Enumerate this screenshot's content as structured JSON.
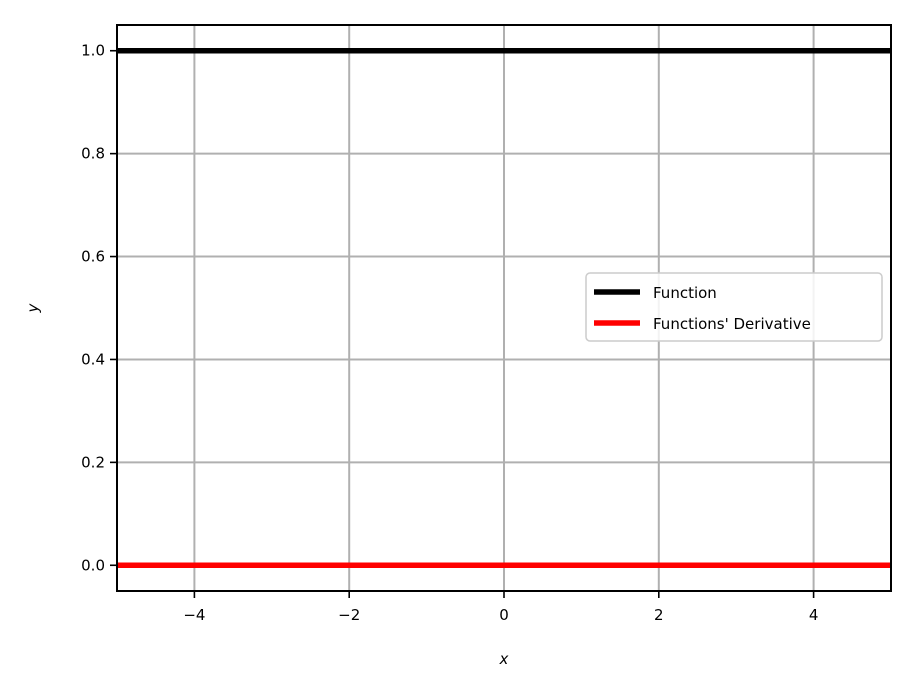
{
  "chart_data": {
    "type": "line",
    "title": "",
    "xlabel": "x",
    "ylabel": "y",
    "xlim": [
      -5,
      5
    ],
    "ylim": [
      -0.05,
      1.05
    ],
    "xticks": [
      -4,
      -2,
      0,
      2,
      4
    ],
    "xtick_labels": [
      "−4",
      "−2",
      "0",
      "2",
      "4"
    ],
    "yticks": [
      0.0,
      0.2,
      0.4,
      0.6,
      0.8,
      1.0
    ],
    "ytick_labels": [
      "0.0",
      "0.2",
      "0.4",
      "0.6",
      "0.8",
      "1.0"
    ],
    "grid": true,
    "legend_position": "center-right",
    "series": [
      {
        "name": "Function",
        "color": "#000000",
        "x": [
          -5,
          5
        ],
        "y": [
          1,
          1
        ]
      },
      {
        "name": "Functions' Derivative",
        "color": "#ff0000",
        "x": [
          -5,
          5
        ],
        "y": [
          0,
          0
        ]
      }
    ]
  }
}
